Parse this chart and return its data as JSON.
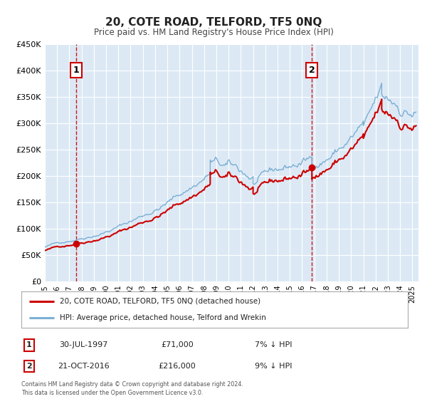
{
  "title": "20, COTE ROAD, TELFORD, TF5 0NQ",
  "subtitle": "Price paid vs. HM Land Registry's House Price Index (HPI)",
  "plot_bg_color": "#dce9f5",
  "outer_bg_color": "#ffffff",
  "hpi_color": "#7bafd4",
  "price_color": "#cc0000",
  "sale1_date": "30-JUL-1997",
  "sale1_price": 71000,
  "sale1_pct": "7% ↓ HPI",
  "sale1_x": 1997.57,
  "sale2_date": "21-OCT-2016",
  "sale2_price": 216000,
  "sale2_pct": "9% ↓ HPI",
  "sale2_x": 2016.8,
  "xmin": 1995.0,
  "xmax": 2025.5,
  "ymin": 0,
  "ymax": 450000,
  "yticks": [
    0,
    50000,
    100000,
    150000,
    200000,
    250000,
    300000,
    350000,
    400000,
    450000
  ],
  "ytick_labels": [
    "£0",
    "£50K",
    "£100K",
    "£150K",
    "£200K",
    "£250K",
    "£300K",
    "£350K",
    "£400K",
    "£450K"
  ],
  "legend_label_price": "20, COTE ROAD, TELFORD, TF5 0NQ (detached house)",
  "legend_label_hpi": "HPI: Average price, detached house, Telford and Wrekin",
  "footer1": "Contains HM Land Registry data © Crown copyright and database right 2024.",
  "footer2": "This data is licensed under the Open Government Licence v3.0."
}
